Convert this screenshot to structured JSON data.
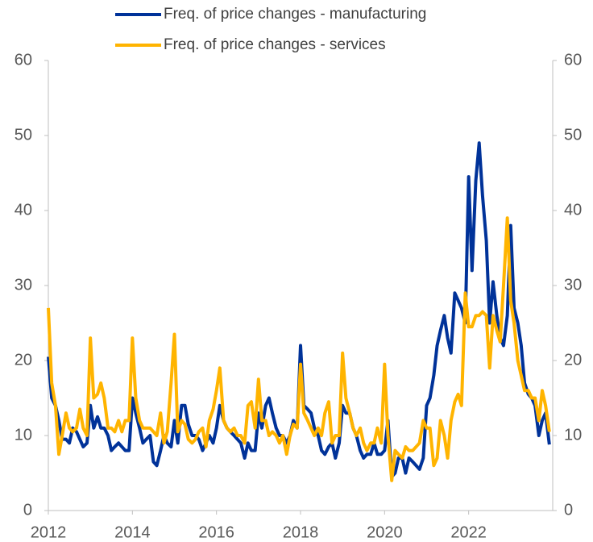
{
  "chart_data": {
    "type": "line",
    "x": [
      2012,
      2012.08,
      2012.17,
      2012.25,
      2012.33,
      2012.42,
      2012.5,
      2012.58,
      2012.67,
      2012.75,
      2012.83,
      2012.92,
      2013,
      2013.08,
      2013.17,
      2013.25,
      2013.33,
      2013.42,
      2013.5,
      2013.58,
      2013.67,
      2013.75,
      2013.83,
      2013.92,
      2014,
      2014.08,
      2014.17,
      2014.25,
      2014.33,
      2014.42,
      2014.5,
      2014.58,
      2014.67,
      2014.75,
      2014.83,
      2014.92,
      2015,
      2015.08,
      2015.17,
      2015.25,
      2015.33,
      2015.42,
      2015.5,
      2015.58,
      2015.67,
      2015.75,
      2015.83,
      2015.92,
      2016,
      2016.08,
      2016.17,
      2016.25,
      2016.33,
      2016.42,
      2016.5,
      2016.58,
      2016.67,
      2016.75,
      2016.83,
      2016.92,
      2017,
      2017.08,
      2017.17,
      2017.25,
      2017.33,
      2017.42,
      2017.5,
      2017.58,
      2017.67,
      2017.75,
      2017.83,
      2017.92,
      2018,
      2018.08,
      2018.17,
      2018.25,
      2018.33,
      2018.42,
      2018.5,
      2018.58,
      2018.67,
      2018.75,
      2018.83,
      2018.92,
      2019,
      2019.08,
      2019.17,
      2019.25,
      2019.33,
      2019.42,
      2019.5,
      2019.58,
      2019.67,
      2019.75,
      2019.83,
      2019.92,
      2020,
      2020.08,
      2020.17,
      2020.25,
      2020.33,
      2020.42,
      2020.5,
      2020.58,
      2020.67,
      2020.75,
      2020.83,
      2020.92,
      2021,
      2021.08,
      2021.17,
      2021.25,
      2021.33,
      2021.42,
      2021.5,
      2021.58,
      2021.67,
      2021.75,
      2021.83,
      2021.92,
      2022,
      2022.08,
      2022.17,
      2022.25,
      2022.33,
      2022.42,
      2022.5,
      2022.58,
      2022.67,
      2022.75,
      2022.83,
      2022.92,
      2023,
      2023.08,
      2023.17,
      2023.25,
      2023.33,
      2023.42,
      2023.5,
      2023.58,
      2023.67,
      2023.75,
      2023.83,
      2023.92
    ],
    "series": [
      {
        "name": "Freq. of price changes - manufacturing",
        "color": "#003299",
        "values": [
          20.5,
          15,
          14,
          12,
          9.5,
          9.5,
          9,
          11,
          10.5,
          9.5,
          8.5,
          9,
          14,
          11,
          12.5,
          11,
          11,
          10,
          8,
          8.5,
          9,
          8.5,
          8,
          8,
          15,
          13,
          11,
          9,
          9.5,
          10,
          6.5,
          6,
          8,
          10,
          9,
          8.5,
          12,
          9,
          14,
          14,
          11.5,
          10,
          10,
          9.5,
          8,
          9,
          10,
          9,
          11,
          14,
          12,
          11,
          10.5,
          10,
          9.5,
          9,
          7,
          9,
          8,
          8,
          13,
          11,
          14,
          15,
          13,
          11,
          10,
          10,
          9,
          10,
          12,
          11,
          22,
          14,
          13.5,
          13,
          11,
          10,
          8,
          7.5,
          8.5,
          9,
          7,
          9,
          14,
          13,
          13,
          11,
          10,
          8,
          7,
          7.5,
          7.5,
          9,
          7.5,
          7.5,
          8,
          12,
          4.5,
          5,
          7,
          7,
          5,
          7,
          6.5,
          6,
          5.5,
          7,
          14,
          15,
          18,
          22,
          24,
          26,
          23,
          21,
          29,
          28,
          27,
          25,
          44.5,
          32,
          44,
          49,
          42,
          36,
          25,
          30.5,
          26,
          23,
          22,
          26,
          38,
          27,
          25,
          22,
          17,
          15.5,
          15,
          14,
          10,
          12,
          13,
          8.8
        ]
      },
      {
        "name": "Freq. of price changes - services",
        "color": "#ffb400",
        "values": [
          27,
          17,
          14,
          7.5,
          10,
          13,
          11,
          10.5,
          11,
          13.5,
          11,
          10,
          23,
          15,
          15.5,
          17,
          15,
          11,
          11,
          10.5,
          12,
          10.5,
          12,
          12,
          23,
          15,
          12,
          11,
          11,
          11,
          10.5,
          10,
          13,
          9,
          10.5,
          17,
          23.5,
          10.5,
          12,
          11.5,
          9.5,
          9,
          9.5,
          10.5,
          11,
          8.5,
          12,
          13.5,
          16,
          19,
          12,
          11,
          10.5,
          11,
          10,
          10,
          9,
          14,
          14.5,
          11,
          17.5,
          12,
          12,
          10,
          10.5,
          10,
          9,
          10,
          7.5,
          10,
          11.5,
          11,
          19.5,
          13,
          12,
          11,
          10,
          11,
          10,
          13,
          14.5,
          9,
          10,
          10,
          21,
          15,
          13,
          11,
          10,
          11,
          9,
          8,
          9,
          9,
          11,
          9,
          19.5,
          10,
          4,
          8,
          7.5,
          7,
          8.5,
          8,
          8,
          8.5,
          9,
          12,
          11,
          11,
          6,
          7,
          12,
          10,
          7,
          12,
          14.5,
          15.5,
          14,
          29,
          24.5,
          24.5,
          26,
          26,
          26.5,
          26,
          19,
          26,
          24,
          22.5,
          30,
          39,
          28,
          25,
          20,
          18,
          16,
          16,
          15,
          15,
          12,
          16,
          14,
          10.5
        ]
      }
    ],
    "xlim": [
      2012,
      2024
    ],
    "xticks": [
      2012,
      2014,
      2016,
      2018,
      2020,
      2022
    ],
    "ylim": [
      0,
      60
    ],
    "yticks": [
      0,
      10,
      20,
      30,
      40,
      50,
      60
    ],
    "y2lim": [
      0,
      60
    ],
    "y2ticks": [
      0,
      10,
      20,
      30,
      40,
      50,
      60
    ],
    "grid": false,
    "legend": "top"
  }
}
